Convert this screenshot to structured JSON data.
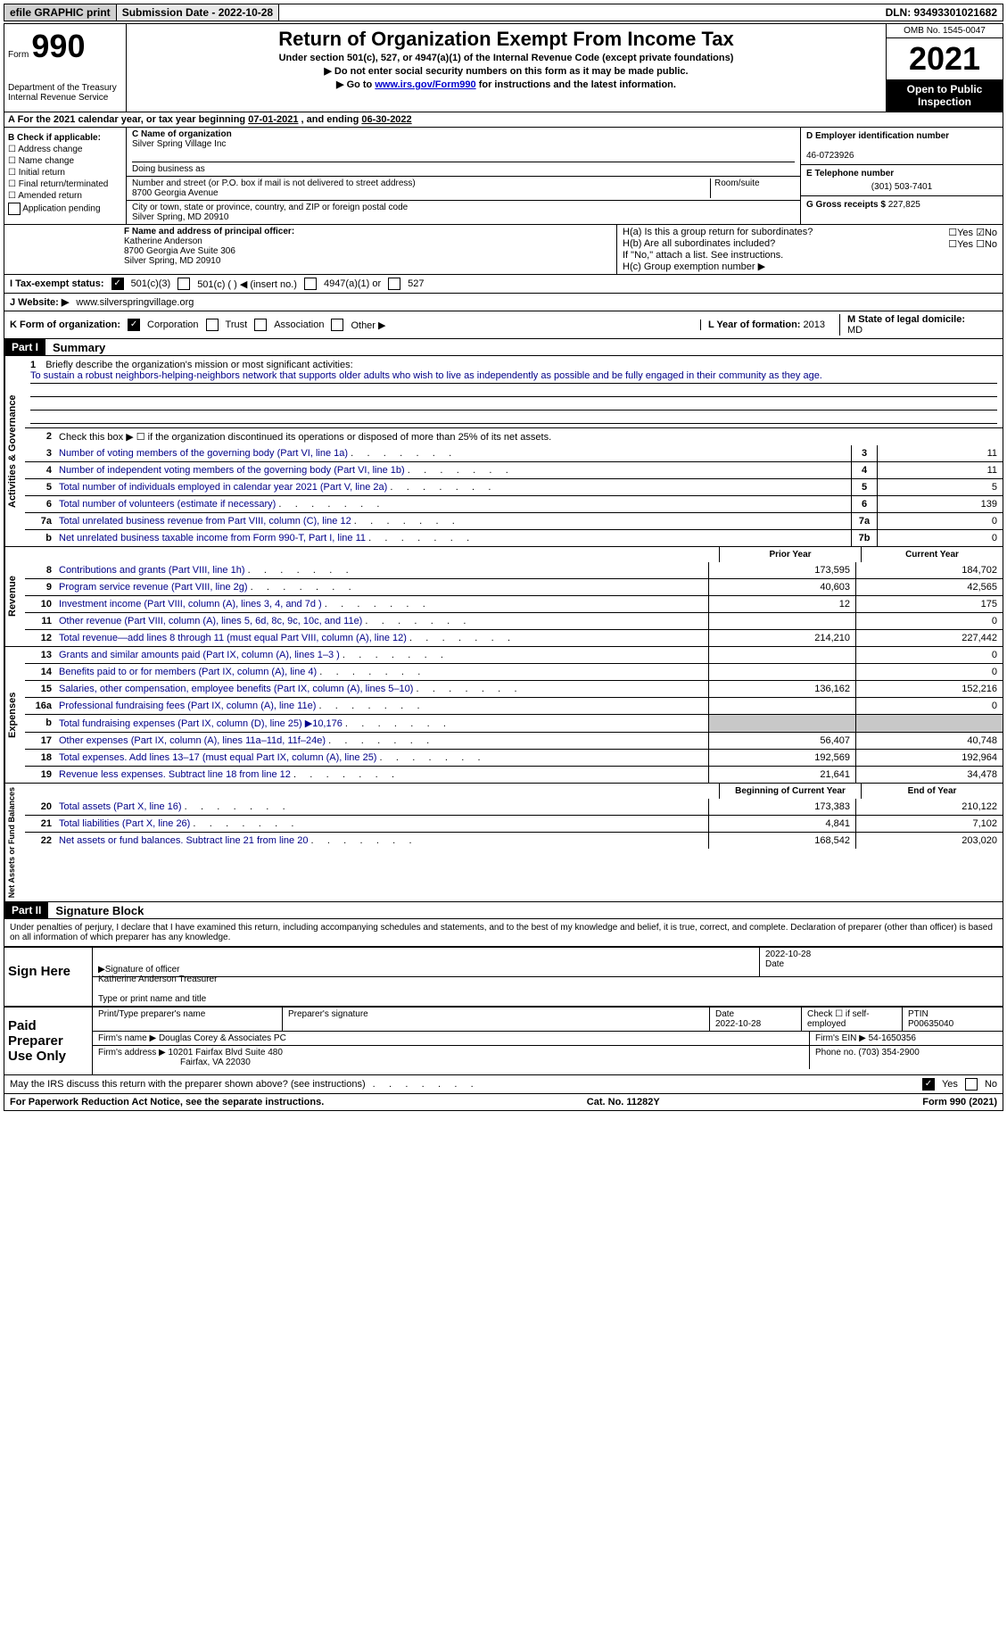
{
  "topbar": {
    "efile": "efile GRAPHIC print",
    "submission_label": "Submission Date - 2022-10-28",
    "dln_label": "DLN: 93493301021682"
  },
  "header": {
    "form_text": "Form",
    "form_number": "990",
    "title": "Return of Organization Exempt From Income Tax",
    "subtitle": "Under section 501(c), 527, or 4947(a)(1) of the Internal Revenue Code (except private foundations)",
    "note1": "▶ Do not enter social security numbers on this form as it may be made public.",
    "note2_prefix": "▶ Go to ",
    "note2_link": "www.irs.gov/Form990",
    "note2_suffix": " for instructions and the latest information.",
    "dept": "Department of the Treasury",
    "irs": "Internal Revenue Service",
    "omb": "OMB No. 1545-0047",
    "year": "2021",
    "inspection1": "Open to Public",
    "inspection2": "Inspection"
  },
  "lineA": {
    "text_prefix": "A For the 2021 calendar year, or tax year beginning ",
    "begin": "07-01-2021",
    "mid": " , and ending ",
    "end": "06-30-2022"
  },
  "sectionB": {
    "header": "B Check if applicable:",
    "items": [
      "☐ Address change",
      "☐ Name change",
      "☐ Initial return",
      "☐ Final return/terminated",
      "☐ Amended return",
      "Application pending"
    ]
  },
  "sectionC": {
    "name_label": "C Name of organization",
    "name": "Silver Spring Village Inc",
    "dba_label": "Doing business as",
    "addr_label": "Number and street (or P.O. box if mail is not delivered to street address)",
    "room_label": "Room/suite",
    "addr": "8700 Georgia Avenue",
    "city_label": "City or town, state or province, country, and ZIP or foreign postal code",
    "city": "Silver Spring, MD  20910"
  },
  "sectionRight": {
    "d_label": "D Employer identification number",
    "d_value": "46-0723926",
    "e_label": "E Telephone number",
    "e_value": "(301) 503-7401",
    "g_label": "G Gross receipts $ ",
    "g_value": "227,825"
  },
  "sectionF": {
    "label": "F Name and address of principal officer:",
    "name": "Katherine Anderson",
    "addr1": "8700 Georgia Ave Suite 306",
    "addr2": "Silver Spring, MD  20910"
  },
  "sectionH": {
    "ha": "H(a)  Is this a group return for subordinates?",
    "hb": "H(b)  Are all subordinates included?",
    "hb_note": "If \"No,\" attach a list. See instructions.",
    "hc": "H(c)  Group exemption number ▶",
    "yes": "Yes",
    "no": "No"
  },
  "lineI": {
    "label": "I   Tax-exempt status:",
    "opt1": "501(c)(3)",
    "opt2": "501(c) (  ) ◀ (insert no.)",
    "opt3": "4947(a)(1) or",
    "opt4": "527"
  },
  "lineJ": {
    "label": "J  Website: ▶",
    "value": "www.silverspringvillage.org"
  },
  "lineK": {
    "label": "K Form of organization:",
    "opts": [
      "Corporation",
      "Trust",
      "Association",
      "Other ▶"
    ]
  },
  "lineL": {
    "label": "L Year of formation: ",
    "value": "2013"
  },
  "lineM": {
    "label": "M State of legal domicile:",
    "value": "MD"
  },
  "part1": {
    "label": "Part I",
    "title": "Summary"
  },
  "mission": {
    "num": "1",
    "label": "Briefly describe the organization's mission or most significant activities:",
    "text": "To sustain a robust neighbors-helping-neighbors network that supports older adults who wish to live as independently as possible and be fully engaged in their community as they age."
  },
  "line2": {
    "num": "2",
    "text": "Check this box ▶ ☐  if the organization discontinued its operations or disposed of more than 25% of its net assets."
  },
  "governance_lines": [
    {
      "num": "3",
      "text": "Number of voting members of the governing body (Part VI, line 1a)",
      "box": "3",
      "val": "11"
    },
    {
      "num": "4",
      "text": "Number of independent voting members of the governing body (Part VI, line 1b)",
      "box": "4",
      "val": "11"
    },
    {
      "num": "5",
      "text": "Total number of individuals employed in calendar year 2021 (Part V, line 2a)",
      "box": "5",
      "val": "5"
    },
    {
      "num": "6",
      "text": "Total number of volunteers (estimate if necessary)",
      "box": "6",
      "val": "139"
    },
    {
      "num": "7a",
      "text": "Total unrelated business revenue from Part VIII, column (C), line 12",
      "box": "7a",
      "val": "0"
    },
    {
      "num": "b",
      "text": "Net unrelated business taxable income from Form 990-T, Part I, line 11",
      "box": "7b",
      "val": "0"
    }
  ],
  "col_headers": {
    "prior": "Prior Year",
    "current": "Current Year",
    "begin": "Beginning of Current Year",
    "end": "End of Year"
  },
  "revenue_lines": [
    {
      "num": "8",
      "text": "Contributions and grants (Part VIII, line 1h)",
      "prior": "173,595",
      "current": "184,702"
    },
    {
      "num": "9",
      "text": "Program service revenue (Part VIII, line 2g)",
      "prior": "40,603",
      "current": "42,565"
    },
    {
      "num": "10",
      "text": "Investment income (Part VIII, column (A), lines 3, 4, and 7d )",
      "prior": "12",
      "current": "175"
    },
    {
      "num": "11",
      "text": "Other revenue (Part VIII, column (A), lines 5, 6d, 8c, 9c, 10c, and 11e)",
      "prior": "",
      "current": "0"
    },
    {
      "num": "12",
      "text": "Total revenue—add lines 8 through 11 (must equal Part VIII, column (A), line 12)",
      "prior": "214,210",
      "current": "227,442"
    }
  ],
  "expense_lines": [
    {
      "num": "13",
      "text": "Grants and similar amounts paid (Part IX, column (A), lines 1–3 )",
      "prior": "",
      "current": "0"
    },
    {
      "num": "14",
      "text": "Benefits paid to or for members (Part IX, column (A), line 4)",
      "prior": "",
      "current": "0"
    },
    {
      "num": "15",
      "text": "Salaries, other compensation, employee benefits (Part IX, column (A), lines 5–10)",
      "prior": "136,162",
      "current": "152,216"
    },
    {
      "num": "16a",
      "text": "Professional fundraising fees (Part IX, column (A), line 11e)",
      "prior": "",
      "current": "0"
    },
    {
      "num": "b",
      "text": "Total fundraising expenses (Part IX, column (D), line 25) ▶10,176",
      "prior": "SHADED",
      "current": "SHADED"
    },
    {
      "num": "17",
      "text": "Other expenses (Part IX, column (A), lines 11a–11d, 11f–24e)",
      "prior": "56,407",
      "current": "40,748"
    },
    {
      "num": "18",
      "text": "Total expenses. Add lines 13–17 (must equal Part IX, column (A), line 25)",
      "prior": "192,569",
      "current": "192,964"
    },
    {
      "num": "19",
      "text": "Revenue less expenses. Subtract line 18 from line 12",
      "prior": "21,641",
      "current": "34,478"
    }
  ],
  "netassets_lines": [
    {
      "num": "20",
      "text": "Total assets (Part X, line 16)",
      "prior": "173,383",
      "current": "210,122"
    },
    {
      "num": "21",
      "text": "Total liabilities (Part X, line 26)",
      "prior": "4,841",
      "current": "7,102"
    },
    {
      "num": "22",
      "text": "Net assets or fund balances. Subtract line 21 from line 20",
      "prior": "168,542",
      "current": "203,020"
    }
  ],
  "vlabels": {
    "gov": "Activities & Governance",
    "rev": "Revenue",
    "exp": "Expenses",
    "net": "Net Assets or Fund Balances"
  },
  "part2": {
    "label": "Part II",
    "title": "Signature Block",
    "declaration": "Under penalties of perjury, I declare that I have examined this return, including accompanying schedules and statements, and to the best of my knowledge and belief, it is true, correct, and complete. Declaration of preparer (other than officer) is based on all information of which preparer has any knowledge."
  },
  "sign": {
    "label": "Sign Here",
    "sig_officer": "Signature of officer",
    "date": "Date",
    "date_val": "2022-10-28",
    "name": "Katherine Anderson  Treasurer",
    "name_label": "Type or print name and title"
  },
  "preparer": {
    "label": "Paid Preparer Use Only",
    "print_name": "Print/Type preparer's name",
    "sig": "Preparer's signature",
    "date_label": "Date",
    "date": "2022-10-28",
    "check": "Check ☐ if self-employed",
    "ptin_label": "PTIN",
    "ptin": "P00635040",
    "firm_name_label": "Firm's name      ▶",
    "firm_name": "Douglas Corey & Associates PC",
    "firm_ein_label": "Firm's EIN ▶",
    "firm_ein": "54-1650356",
    "firm_addr_label": "Firm's address ▶",
    "firm_addr1": "10201 Fairfax Blvd Suite 480",
    "firm_addr2": "Fairfax, VA  22030",
    "phone_label": "Phone no.",
    "phone": "(703) 354-2900"
  },
  "discuss": "May the IRS discuss this return with the preparer shown above? (see instructions)",
  "footer": {
    "left": "For Paperwork Reduction Act Notice, see the separate instructions.",
    "center": "Cat. No. 11282Y",
    "right": "Form 990 (2021)"
  }
}
